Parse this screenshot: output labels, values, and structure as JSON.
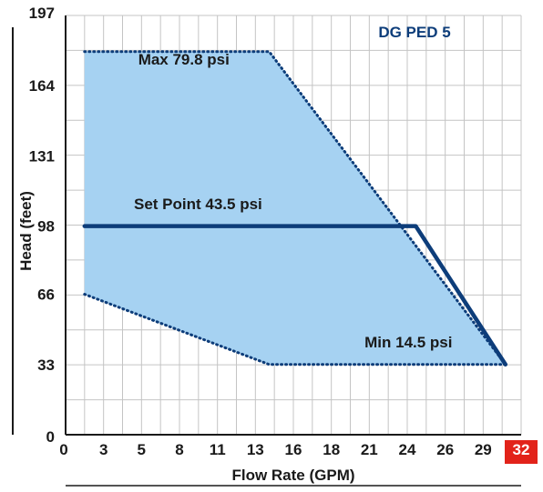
{
  "chart_data": {
    "type": "area",
    "title": "DG PED 5",
    "xlabel": "Flow Rate (GPM)",
    "ylabel": "Head (feet)",
    "xlim": [
      0,
      32
    ],
    "ylim": [
      0,
      197
    ],
    "x_ticks": [
      "0",
      "3",
      "5",
      "8",
      "11",
      "13",
      "16",
      "18",
      "21",
      "24",
      "26",
      "29",
      "32"
    ],
    "x_tick_values": [
      0,
      2.67,
      5.33,
      8,
      10.67,
      13.33,
      16,
      18.67,
      21.33,
      24,
      26.67,
      29.33,
      32
    ],
    "y_ticks": [
      "0",
      "33",
      "66",
      "98",
      "131",
      "164",
      "197"
    ],
    "y_tick_values": [
      0,
      33,
      66,
      98,
      131,
      164,
      197
    ],
    "highlighted_x_tick": "32",
    "grid": true,
    "series": [
      {
        "name": "Max 79.8 psi",
        "style": "dotted",
        "points": [
          [
            1.33,
            180
          ],
          [
            14.3,
            180
          ],
          [
            30.9,
            33
          ]
        ]
      },
      {
        "name": "Min 14.5 psi",
        "style": "dotted",
        "points": [
          [
            1.33,
            66
          ],
          [
            14.3,
            33
          ],
          [
            30.9,
            33
          ]
        ]
      },
      {
        "name": "Set Point 43.5 psi",
        "style": "solid",
        "points": [
          [
            1.33,
            98
          ],
          [
            24.6,
            98
          ],
          [
            30.9,
            33
          ]
        ]
      }
    ],
    "annotations": [
      {
        "text": "Max 79.8 psi",
        "x": 5.1,
        "y": 174
      },
      {
        "text": "Set Point 43.5 psi",
        "x": 4.8,
        "y": 106
      },
      {
        "text": "Min 14.5 psi",
        "x": 21.0,
        "y": 41
      }
    ],
    "colors": {
      "fill": "#a6d2f2",
      "line": "#0d3d7a",
      "title": "#0d3d7a",
      "grid": "#c4c4c4",
      "highlight": "#e2231a"
    }
  }
}
